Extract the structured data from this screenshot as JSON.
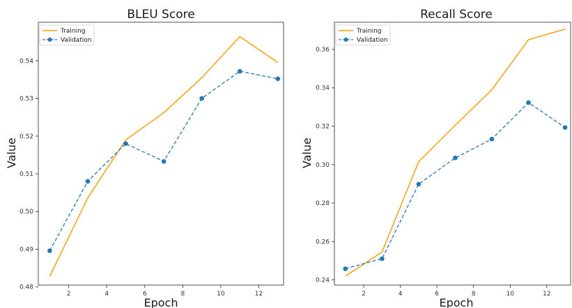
{
  "chart_data": [
    {
      "type": "line",
      "title": "BLEU Score",
      "xlabel": "Epoch",
      "ylabel": "Value",
      "x": [
        1,
        3,
        5,
        7,
        9,
        11,
        13
      ],
      "xlim": [
        0.4,
        13.3
      ],
      "ylim": [
        0.4805,
        0.5502
      ],
      "xticks": [
        2,
        4,
        6,
        8,
        10,
        12
      ],
      "yticks": [
        0.48,
        0.49,
        0.5,
        0.51,
        0.52,
        0.53,
        0.54
      ],
      "ytick_labels": [
        "0.48",
        "0.49",
        "0.50",
        "0.51",
        "0.52",
        "0.53",
        "0.54"
      ],
      "legend_position": "top-left",
      "grid": false,
      "series": [
        {
          "name": "Training",
          "values": [
            0.4828,
            0.5036,
            0.519,
            0.5262,
            0.5355,
            0.5464,
            0.5395
          ],
          "color": "#f5a00a",
          "style": "solid",
          "marker": "none"
        },
        {
          "name": "Validation",
          "values": [
            0.4896,
            0.508,
            0.518,
            0.5133,
            0.53,
            0.5372,
            0.5352
          ],
          "color": "#1f77b4",
          "style": "dashed",
          "marker": "circle"
        }
      ]
    },
    {
      "type": "line",
      "title": "Recall Score",
      "xlabel": "Epoch",
      "ylabel": "Value",
      "x": [
        1,
        3,
        5,
        7,
        9,
        11,
        13
      ],
      "xlim": [
        0.4,
        13.3
      ],
      "ylim": [
        0.2373,
        0.3741
      ],
      "xticks": [
        2,
        4,
        6,
        8,
        10,
        12
      ],
      "yticks": [
        0.24,
        0.26,
        0.28,
        0.3,
        0.32,
        0.34,
        0.36
      ],
      "ytick_labels": [
        "0.24",
        "0.26",
        "0.28",
        "0.30",
        "0.32",
        "0.34",
        "0.36"
      ],
      "legend_position": "top-left",
      "grid": false,
      "series": [
        {
          "name": "Training",
          "values": [
            0.242,
            0.2545,
            0.3015,
            0.3205,
            0.339,
            0.365,
            0.3705
          ],
          "color": "#f5a00a",
          "style": "solid",
          "marker": "none"
        },
        {
          "name": "Validation",
          "values": [
            0.2458,
            0.251,
            0.2898,
            0.3035,
            0.3133,
            0.3323,
            0.3193
          ],
          "color": "#1f77b4",
          "style": "dashed",
          "marker": "circle"
        }
      ]
    }
  ]
}
